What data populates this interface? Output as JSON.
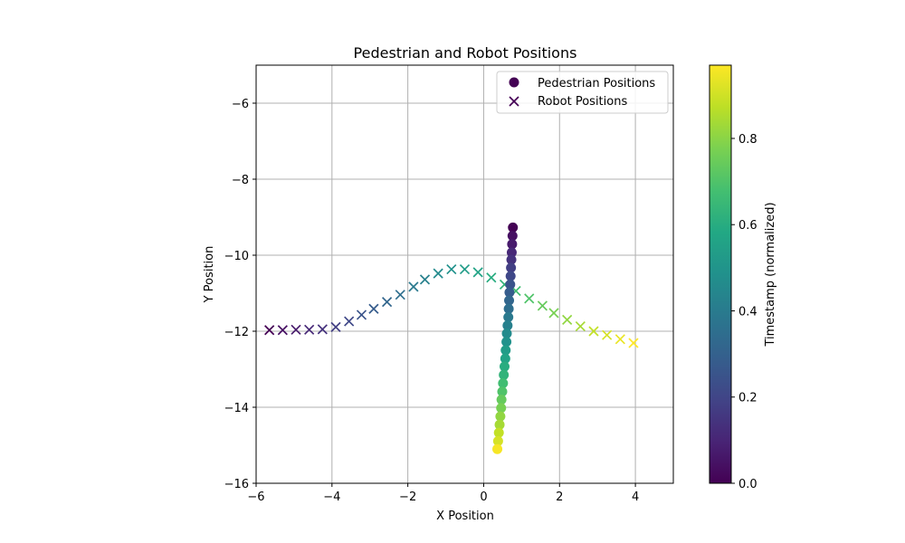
{
  "chart_data": {
    "type": "scatter",
    "title": "Pedestrian and Robot Positions",
    "xlabel": "X Position",
    "ylabel": "Y Position",
    "xlim": [
      -6,
      5
    ],
    "ylim": [
      -16,
      -5
    ],
    "xticks": [
      -6,
      -4,
      -2,
      0,
      2,
      4
    ],
    "yticks": [
      -16,
      -14,
      -12,
      -10,
      -8,
      -6
    ],
    "grid": true,
    "legend_position": "top-right",
    "series": [
      {
        "name": "Pedestrian Positions",
        "marker": "circle",
        "points": [
          {
            "x": 0.77,
            "y": -9.27,
            "t": 0.0
          },
          {
            "x": 0.76,
            "y": -9.49,
            "t": 0.04
          },
          {
            "x": 0.75,
            "y": -9.71,
            "t": 0.07
          },
          {
            "x": 0.74,
            "y": -9.93,
            "t": 0.11
          },
          {
            "x": 0.73,
            "y": -10.12,
            "t": 0.14
          },
          {
            "x": 0.72,
            "y": -10.33,
            "t": 0.18
          },
          {
            "x": 0.71,
            "y": -10.55,
            "t": 0.21
          },
          {
            "x": 0.7,
            "y": -10.77,
            "t": 0.25
          },
          {
            "x": 0.68,
            "y": -10.98,
            "t": 0.28
          },
          {
            "x": 0.67,
            "y": -11.19,
            "t": 0.32
          },
          {
            "x": 0.66,
            "y": -11.41,
            "t": 0.35
          },
          {
            "x": 0.65,
            "y": -11.63,
            "t": 0.39
          },
          {
            "x": 0.63,
            "y": -11.85,
            "t": 0.42
          },
          {
            "x": 0.61,
            "y": -12.06,
            "t": 0.46
          },
          {
            "x": 0.6,
            "y": -12.28,
            "t": 0.49
          },
          {
            "x": 0.58,
            "y": -12.5,
            "t": 0.53
          },
          {
            "x": 0.57,
            "y": -12.72,
            "t": 0.56
          },
          {
            "x": 0.55,
            "y": -12.93,
            "t": 0.6
          },
          {
            "x": 0.53,
            "y": -13.15,
            "t": 0.63
          },
          {
            "x": 0.51,
            "y": -13.37,
            "t": 0.67
          },
          {
            "x": 0.49,
            "y": -13.59,
            "t": 0.7
          },
          {
            "x": 0.47,
            "y": -13.8,
            "t": 0.74
          },
          {
            "x": 0.46,
            "y": -14.02,
            "t": 0.77
          },
          {
            "x": 0.44,
            "y": -14.24,
            "t": 0.81
          },
          {
            "x": 0.42,
            "y": -14.46,
            "t": 0.84
          },
          {
            "x": 0.4,
            "y": -14.67,
            "t": 0.88
          },
          {
            "x": 0.38,
            "y": -14.89,
            "t": 0.91
          },
          {
            "x": 0.36,
            "y": -15.1,
            "t": 0.96
          }
        ]
      },
      {
        "name": "Robot Positions",
        "marker": "x",
        "points": [
          {
            "x": -5.65,
            "y": -11.97,
            "t": 0.0
          },
          {
            "x": -5.3,
            "y": -11.97,
            "t": 0.04
          },
          {
            "x": -4.95,
            "y": -11.96,
            "t": 0.07
          },
          {
            "x": -4.6,
            "y": -11.96,
            "t": 0.11
          },
          {
            "x": -4.25,
            "y": -11.95,
            "t": 0.14
          },
          {
            "x": -3.9,
            "y": -11.89,
            "t": 0.18
          },
          {
            "x": -3.55,
            "y": -11.74,
            "t": 0.21
          },
          {
            "x": -3.22,
            "y": -11.57,
            "t": 0.25
          },
          {
            "x": -2.9,
            "y": -11.41,
            "t": 0.28
          },
          {
            "x": -2.55,
            "y": -11.23,
            "t": 0.32
          },
          {
            "x": -2.2,
            "y": -11.04,
            "t": 0.35
          },
          {
            "x": -1.85,
            "y": -10.83,
            "t": 0.39
          },
          {
            "x": -1.55,
            "y": -10.64,
            "t": 0.42
          },
          {
            "x": -1.2,
            "y": -10.48,
            "t": 0.46
          },
          {
            "x": -0.85,
            "y": -10.37,
            "t": 0.49
          },
          {
            "x": -0.5,
            "y": -10.37,
            "t": 0.53
          },
          {
            "x": -0.15,
            "y": -10.45,
            "t": 0.56
          },
          {
            "x": 0.2,
            "y": -10.59,
            "t": 0.6
          },
          {
            "x": 0.55,
            "y": -10.77,
            "t": 0.63
          },
          {
            "x": 0.85,
            "y": -10.94,
            "t": 0.67
          },
          {
            "x": 1.2,
            "y": -11.14,
            "t": 0.7
          },
          {
            "x": 1.55,
            "y": -11.33,
            "t": 0.74
          },
          {
            "x": 1.85,
            "y": -11.52,
            "t": 0.77
          },
          {
            "x": 2.2,
            "y": -11.7,
            "t": 0.81
          },
          {
            "x": 2.55,
            "y": -11.87,
            "t": 0.84
          },
          {
            "x": 2.9,
            "y": -12.0,
            "t": 0.88
          },
          {
            "x": 3.25,
            "y": -12.1,
            "t": 0.91
          },
          {
            "x": 3.6,
            "y": -12.21,
            "t": 0.94
          },
          {
            "x": 3.95,
            "y": -12.31,
            "t": 0.97
          }
        ]
      }
    ],
    "colorbar": {
      "label": "Timestamp (normalized)",
      "range": [
        0,
        0.97
      ],
      "ticks": [
        0.0,
        0.2,
        0.4,
        0.6,
        0.8
      ],
      "tick_labels": [
        "0.0",
        "0.2",
        "0.4",
        "0.6",
        "0.8"
      ],
      "colormap": "viridis"
    },
    "colors": {
      "grid": "#b0b0b0",
      "axis": "#000000",
      "legend_marker": "#440154"
    }
  }
}
